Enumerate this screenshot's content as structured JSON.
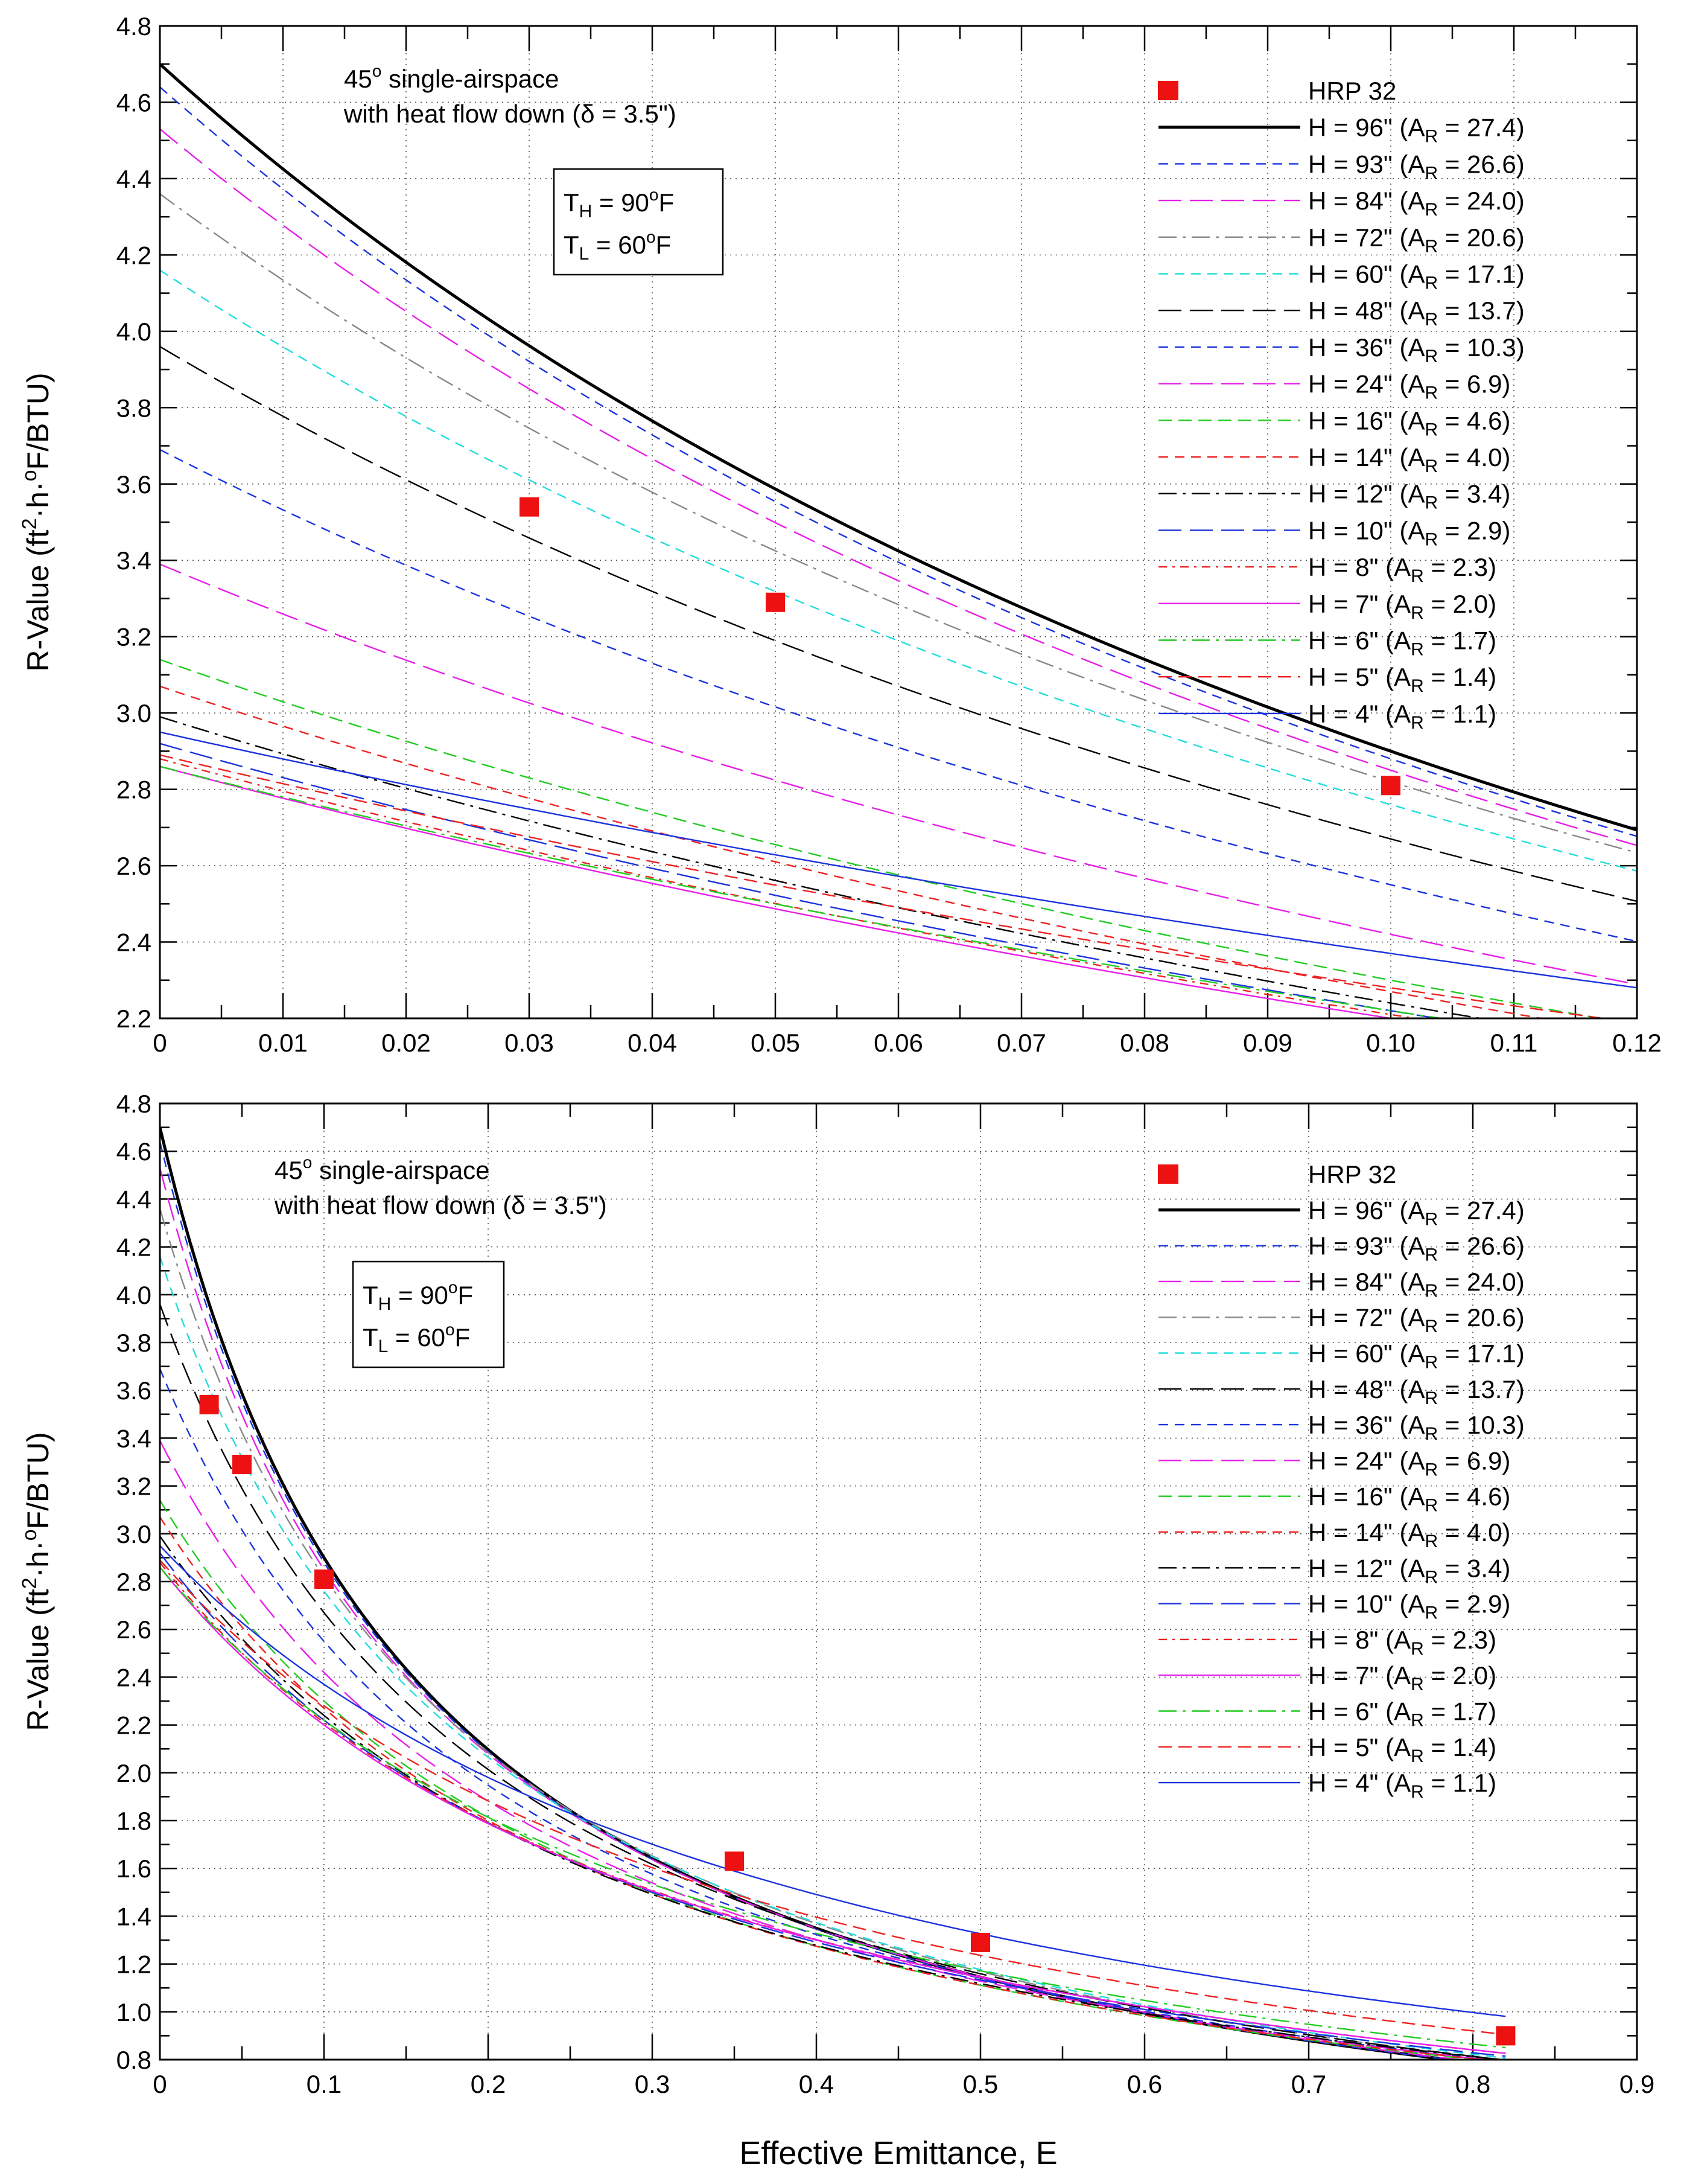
{
  "figure": {
    "xlabel": "Effective Emittance, E",
    "ylabel_prefix": "R-Value (ft",
    "ylabel_sup1": "2",
    "ylabel_mid1": "·h·",
    "ylabel_sup2": "o",
    "ylabel_suffix": "F/BTU)"
  },
  "annotation": {
    "angle": "45",
    "deg": "o",
    "title1_rest": " single-airspace",
    "title2": "with heat flow down (δ = 3.5\")",
    "th_main": "T",
    "th_sub": "H",
    "th_val": " = 90",
    "th_unit": "F",
    "tl_main": "T",
    "tl_sub": "L",
    "tl_val": " = 60",
    "tl_unit": "F",
    "deg_o": "o"
  },
  "chart_data": [
    {
      "type": "line",
      "panel": "top",
      "xlim": [
        0,
        0.12
      ],
      "ylim": [
        2.2,
        4.8
      ],
      "xticks": [
        "0",
        "0.01",
        "0.02",
        "0.03",
        "0.04",
        "0.05",
        "0.06",
        "0.07",
        "0.08",
        "0.09",
        "0.10",
        "0.11",
        "0.12"
      ],
      "yticks": [
        "2.2",
        "2.4",
        "2.6",
        "2.8",
        "3.0",
        "3.2",
        "3.4",
        "3.6",
        "3.8",
        "4.0",
        "4.2",
        "4.4",
        "4.6",
        "4.8"
      ],
      "grid": true,
      "legend": "top-right"
    },
    {
      "type": "line",
      "panel": "bottom",
      "xlim": [
        0,
        0.9
      ],
      "ylim": [
        0.8,
        4.8
      ],
      "xticks": [
        "0",
        "0.1",
        "0.2",
        "0.3",
        "0.4",
        "0.5",
        "0.6",
        "0.7",
        "0.8",
        "0.9"
      ],
      "yticks": [
        "0.8",
        "1.0",
        "1.2",
        "1.4",
        "1.6",
        "1.8",
        "2.0",
        "2.2",
        "2.4",
        "2.6",
        "2.8",
        "3.0",
        "3.2",
        "3.4",
        "3.6",
        "3.8",
        "4.0",
        "4.2",
        "4.4",
        "4.6",
        "4.8"
      ],
      "grid": true,
      "legend": "top-right"
    }
  ],
  "series_data": {
    "points": {
      "name": "HRP 32",
      "color": "#ee1111",
      "x": [
        0.03,
        0.05,
        0.1,
        0.35,
        0.5,
        0.82
      ],
      "y": [
        3.54,
        3.29,
        2.81,
        1.63,
        1.29,
        0.9
      ]
    },
    "curve_end_x": 0.82,
    "series": [
      {
        "h": "96",
        "ar": "27.4",
        "color": "#000000",
        "style": "solid",
        "width": 5,
        "r0": 4.7,
        "r10": 2.9
      },
      {
        "h": "93",
        "ar": "26.6",
        "color": "#1a33dd",
        "style": "dash-short",
        "width": 2.4,
        "r0": 4.64,
        "r10": 2.88
      },
      {
        "h": "84",
        "ar": "24.0",
        "color": "#e81ee8",
        "style": "dash-long",
        "width": 2.4,
        "r0": 4.53,
        "r10": 2.85
      },
      {
        "h": "72",
        "ar": "20.6",
        "color": "#888888",
        "style": "dash-dot",
        "width": 2.4,
        "r0": 4.36,
        "r10": 2.82
      },
      {
        "h": "60",
        "ar": "17.1",
        "color": "#22dddd",
        "style": "dash-short",
        "width": 2.4,
        "r0": 4.16,
        "r10": 2.76
      },
      {
        "h": "48",
        "ar": "13.7",
        "color": "#000000",
        "style": "dash-long",
        "width": 2.4,
        "r0": 3.96,
        "r10": 2.67
      },
      {
        "h": "36",
        "ar": "10.3",
        "color": "#1a33dd",
        "style": "dash-short",
        "width": 2.4,
        "r0": 3.69,
        "r10": 2.55
      },
      {
        "h": "24",
        "ar": "6.9",
        "color": "#e81ee8",
        "style": "dash-long",
        "width": 2.4,
        "r0": 3.39,
        "r10": 2.42
      },
      {
        "h": "16",
        "ar": "4.6",
        "color": "#22cc22",
        "style": "dash-mid",
        "width": 2.4,
        "r0": 3.14,
        "r10": 2.3
      },
      {
        "h": "14",
        "ar": "4.0",
        "color": "#ee2222",
        "style": "dash-short",
        "width": 2.4,
        "r0": 3.07,
        "r10": 2.27
      },
      {
        "h": "12",
        "ar": "3.4",
        "color": "#000000",
        "style": "dash-dot",
        "width": 2.4,
        "r0": 2.99,
        "r10": 2.24
      },
      {
        "h": "10",
        "ar": "2.9",
        "color": "#1a33dd",
        "style": "dash-long",
        "width": 2.4,
        "r0": 2.92,
        "r10": 2.22
      },
      {
        "h": "8",
        "ar": "2.3",
        "color": "#ee2222",
        "style": "dot-dash",
        "width": 2.4,
        "r0": 2.88,
        "r10": 2.21
      },
      {
        "h": "7",
        "ar": "2.0",
        "color": "#e81ee8",
        "style": "solid",
        "width": 2.4,
        "r0": 2.86,
        "r10": 2.2
      },
      {
        "h": "6",
        "ar": "1.7",
        "color": "#22cc22",
        "style": "dash-dot",
        "width": 2.4,
        "r0": 2.86,
        "r10": 2.22
      },
      {
        "h": "5",
        "ar": "1.4",
        "color": "#ee2222",
        "style": "dash-mid",
        "width": 2.4,
        "r0": 2.89,
        "r10": 2.28
      },
      {
        "h": "4",
        "ar": "1.1",
        "color": "#1a33dd",
        "style": "solid",
        "width": 2.4,
        "r0": 2.95,
        "r10": 2.37
      }
    ]
  }
}
